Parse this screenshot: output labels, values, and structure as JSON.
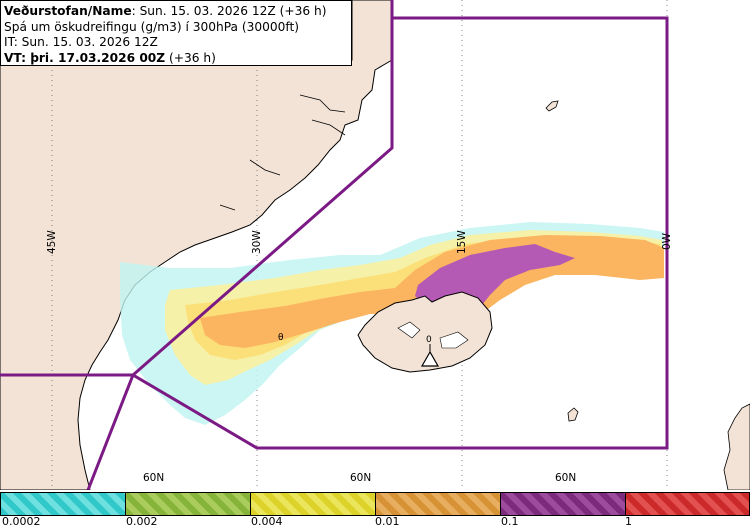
{
  "header": {
    "line1_bold": "Veðurstofan/Name",
    "line1_rest": ": Sun. 15. 03. 2026 12Z (+36 h)",
    "line2": "Spá um öskudreifingu (g/m3) í 300hPa (30000ft)",
    "line3": "IT: Sun. 15. 03. 2026 12Z",
    "line4_bold": "VT: þri. 17.03.2026 00Z",
    "line4_rest": " (+36 h)"
  },
  "map": {
    "lat_labels": [
      "60N",
      "60N",
      "60N"
    ],
    "lon_labels": [
      "45W",
      "30W",
      "15W",
      "0W"
    ],
    "volcano_marker": "0",
    "plume_marker": "θ",
    "colors": {
      "land": "#f3e3d6",
      "sea": "#ffffff",
      "border": "#7b1a84",
      "ash_low": "#bff4f1",
      "ash_002": "#f6f1a8",
      "ash_004": "#fbe07a",
      "ash_01": "#fbb45f",
      "ash_1": "#b45ab4",
      "ash_high": "#e86a8a"
    }
  },
  "legend": {
    "ticks": [
      "0.0002",
      "0.002",
      "0.004",
      "0.01",
      "0.1",
      "1"
    ],
    "colors": [
      "#30c8c8",
      "#86b43a",
      "#dcd22a",
      "#d79236",
      "#7c2a7c",
      "#cc2a2a"
    ]
  }
}
